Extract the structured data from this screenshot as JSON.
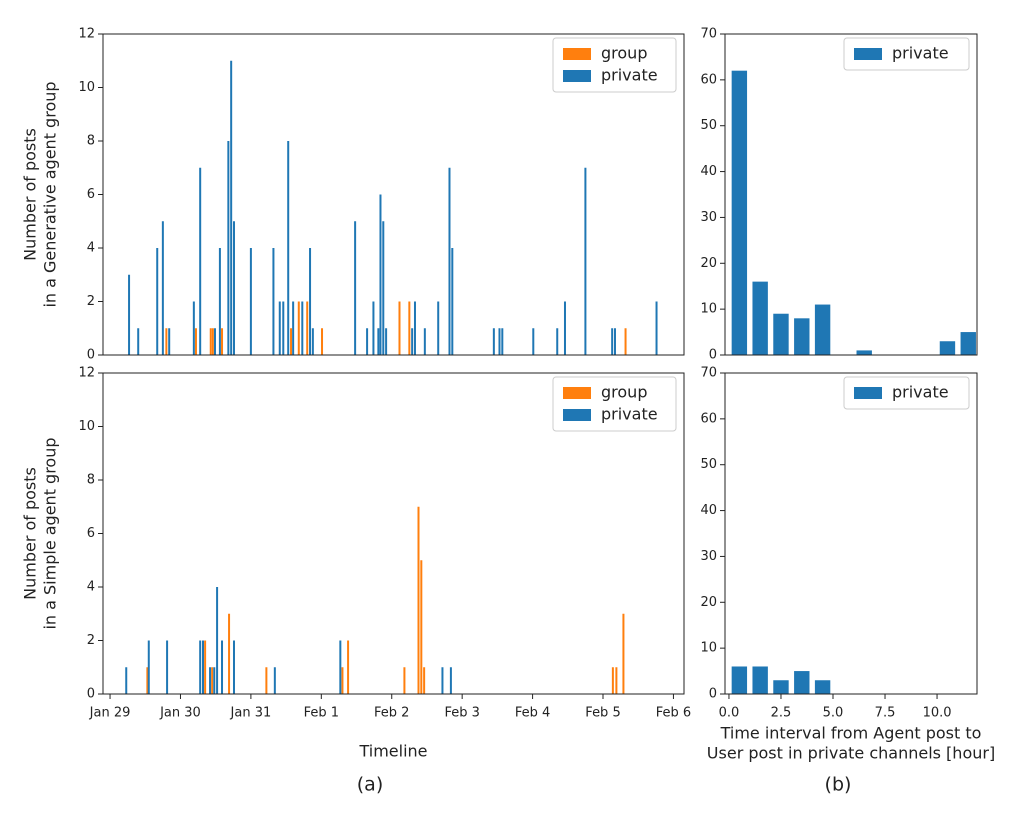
{
  "chart_data": [
    {
      "type": "bar",
      "ylabel": [
        "Number of posts",
        "in a Generative agent group"
      ],
      "xlim": [
        28.9,
        37.15
      ],
      "ylim": [
        0,
        12
      ],
      "yticks": [
        0,
        2,
        4,
        6,
        8,
        10,
        12
      ],
      "legend": "upper right",
      "series": [
        {
          "name": "group",
          "color": "#ff7f0e",
          "x": [
            29.8,
            30.22,
            30.43,
            30.46,
            30.59,
            31.57,
            31.68,
            31.8,
            32.01,
            33.11,
            33.25,
            36.32
          ],
          "values": [
            1,
            1,
            1,
            1,
            1,
            1,
            2,
            2,
            1,
            2,
            2,
            1
          ]
        },
        {
          "name": "private",
          "color": "#1f77b4",
          "x": [
            29.27,
            29.4,
            29.67,
            29.75,
            29.84,
            30.19,
            30.28,
            30.49,
            30.56,
            30.68,
            30.72,
            30.76,
            31.0,
            31.32,
            31.41,
            31.46,
            31.53,
            31.6,
            31.73,
            31.84,
            31.88,
            32.48,
            32.65,
            32.74,
            32.81,
            32.84,
            32.88,
            32.92,
            33.29,
            33.33,
            33.47,
            33.66,
            33.82,
            33.86,
            34.45,
            34.53,
            34.57,
            35.01,
            35.35,
            35.46,
            35.75,
            36.13,
            36.17,
            36.76
          ],
          "values": [
            3,
            1,
            4,
            5,
            1,
            2,
            7,
            1,
            4,
            8,
            11,
            5,
            4,
            4,
            2,
            2,
            8,
            2,
            2,
            4,
            1,
            5,
            1,
            2,
            1,
            6,
            5,
            1,
            1,
            2,
            1,
            2,
            7,
            4,
            1,
            1,
            1,
            1,
            1,
            2,
            7,
            1,
            1,
            2
          ]
        }
      ]
    },
    {
      "type": "histogram",
      "legend": "upper right",
      "xlim": [
        -0.19,
        11.92
      ],
      "ylim": [
        0,
        70
      ],
      "yticks": [
        0,
        10,
        20,
        30,
        40,
        50,
        60,
        70
      ],
      "bins": [
        0,
        1,
        2,
        3,
        4,
        5,
        6,
        7,
        8,
        9,
        10,
        11,
        12
      ],
      "series": [
        {
          "name": "private",
          "color": "#1f77b4",
          "values": [
            62,
            16,
            9,
            8,
            11,
            0,
            1,
            0,
            0,
            0,
            3,
            5
          ]
        }
      ]
    },
    {
      "type": "bar",
      "ylabel": [
        "Number of posts",
        "in a Simple agent group"
      ],
      "xlabel": [
        "Timeline"
      ],
      "xlim": [
        28.9,
        37.15
      ],
      "ylim": [
        0,
        12
      ],
      "yticks": [
        0,
        2,
        4,
        6,
        8,
        10,
        12
      ],
      "legend": "upper right",
      "xticks": [
        {
          "value": 29,
          "label": "Jan 29"
        },
        {
          "value": 30,
          "label": "Jan 30"
        },
        {
          "value": 31,
          "label": "Jan 31"
        },
        {
          "value": 32,
          "label": "Feb 1"
        },
        {
          "value": 33,
          "label": "Feb 2"
        },
        {
          "value": 34,
          "label": "Feb 3"
        },
        {
          "value": 35,
          "label": "Feb 4"
        },
        {
          "value": 36,
          "label": "Feb 5"
        },
        {
          "value": 37,
          "label": "Feb 6"
        }
      ],
      "series": [
        {
          "name": "group",
          "color": "#ff7f0e",
          "x": [
            29.53,
            30.35,
            30.45,
            30.69,
            31.22,
            32.3,
            32.38,
            33.18,
            33.38,
            33.42,
            33.46,
            36.14,
            36.19,
            36.29
          ],
          "values": [
            1,
            2,
            1,
            3,
            1,
            1,
            2,
            1,
            7,
            5,
            1,
            1,
            1,
            3
          ]
        },
        {
          "name": "private",
          "color": "#1f77b4",
          "x": [
            29.23,
            29.55,
            29.81,
            30.28,
            30.32,
            30.42,
            30.48,
            30.52,
            30.59,
            30.76,
            31.34,
            32.27,
            33.72,
            33.84
          ],
          "values": [
            1,
            2,
            2,
            2,
            2,
            1,
            1,
            4,
            2,
            2,
            1,
            2,
            1,
            1
          ]
        }
      ]
    },
    {
      "type": "histogram",
      "legend": "upper right",
      "xlabel": [
        "Time interval from Agent post to",
        "User post in private channels [hour]"
      ],
      "xlim": [
        -0.19,
        11.92
      ],
      "ylim": [
        0,
        70
      ],
      "yticks": [
        0,
        10,
        20,
        30,
        40,
        50,
        60,
        70
      ],
      "xticks": [
        {
          "value": 0,
          "label": "0.0"
        },
        {
          "value": 2.5,
          "label": "2.5"
        },
        {
          "value": 5,
          "label": "5.0"
        },
        {
          "value": 7.5,
          "label": "7.5"
        },
        {
          "value": 10,
          "label": "10.0"
        }
      ],
      "bins": [
        0,
        1,
        2,
        3,
        4,
        5,
        6,
        7,
        8,
        9,
        10,
        11,
        12
      ],
      "series": [
        {
          "name": "private",
          "color": "#1f77b4",
          "values": [
            6,
            6,
            3,
            5,
            3,
            0,
            0,
            0,
            0,
            0,
            0,
            0
          ]
        }
      ]
    }
  ],
  "captions": [
    "(a)",
    "(b)"
  ]
}
